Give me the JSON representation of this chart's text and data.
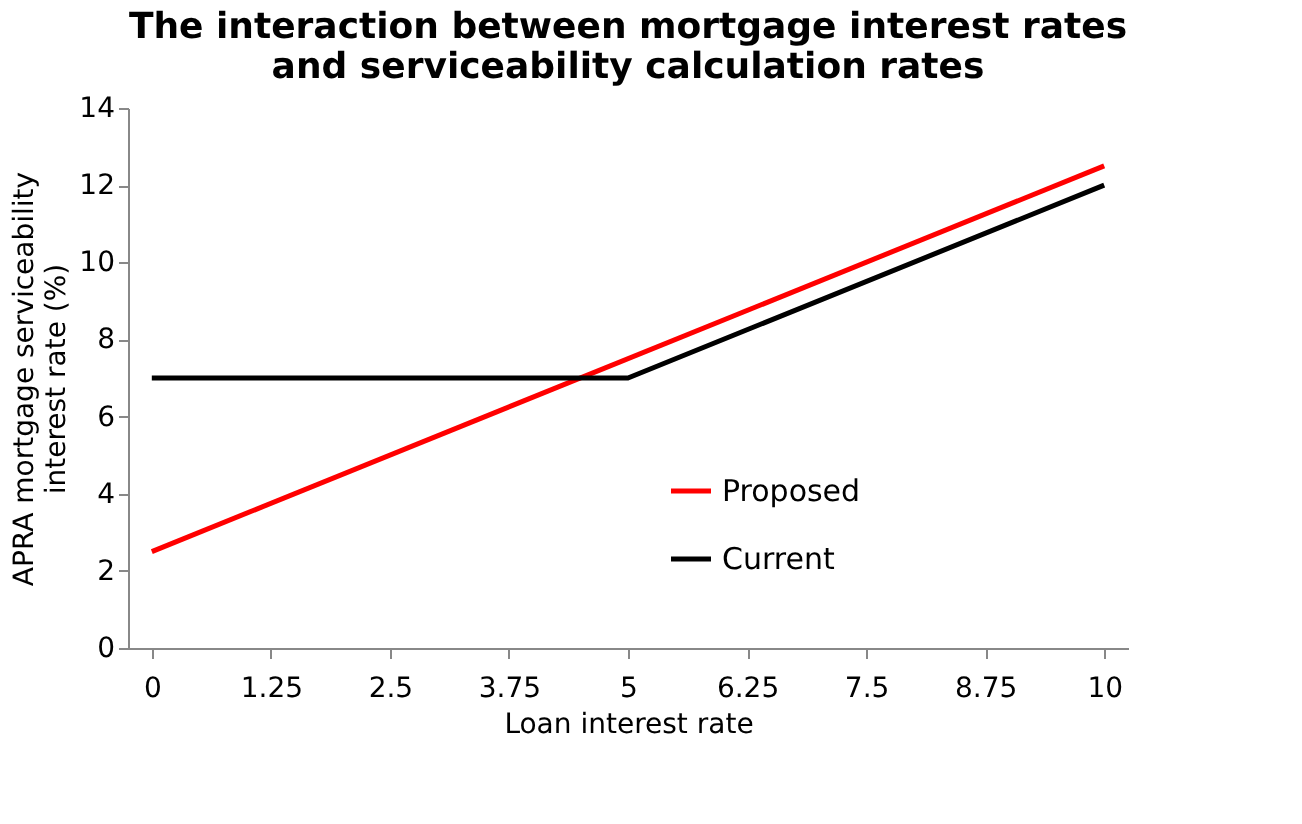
{
  "chart_data": {
    "type": "line",
    "title": [
      "The interaction between mortgage interest rates",
      "and serviceability calculation rates"
    ],
    "xlabel": "Loan interest rate",
    "ylabel": [
      "APRA mortgage serviceability",
      "interest rate (%)"
    ],
    "series": [
      {
        "name": "Proposed",
        "color": "#ff0000",
        "x": [
          0,
          10
        ],
        "values": [
          2.5,
          12.5
        ]
      },
      {
        "name": "Current",
        "color": "#000000",
        "x": [
          0,
          5,
          10
        ],
        "values": [
          7,
          7,
          12
        ]
      }
    ],
    "xlim": [
      -0.25,
      10.25
    ],
    "xticks": [
      0,
      1.25,
      2.5,
      3.75,
      5,
      6.25,
      7.5,
      8.75,
      10
    ],
    "ylim": [
      0,
      14
    ],
    "yticks": [
      0,
      2,
      4,
      6,
      8,
      10,
      12,
      14
    ],
    "grid": false,
    "legend": "bottom right",
    "marker": "none",
    "line_style": "solid"
  }
}
